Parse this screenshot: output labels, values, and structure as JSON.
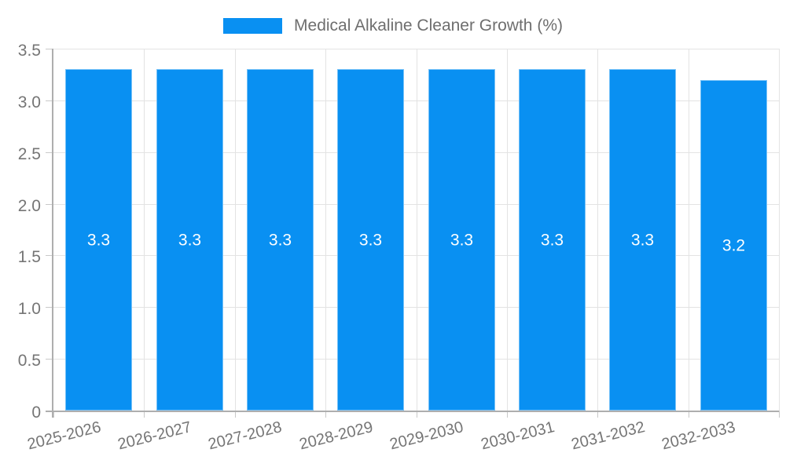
{
  "chart_data": {
    "type": "bar",
    "title": "Medical Alkaline Cleaner Growth (%)",
    "categories": [
      "2025-2026",
      "2026-2027",
      "2027-2028",
      "2028-2029",
      "2029-2030",
      "2030-2031",
      "2031-2032",
      "2032-2033"
    ],
    "values": [
      3.3,
      3.3,
      3.3,
      3.3,
      3.3,
      3.3,
      3.3,
      3.2
    ],
    "value_labels": [
      "3.3",
      "3.3",
      "3.3",
      "3.3",
      "3.3",
      "3.3",
      "3.3",
      "3.2"
    ],
    "xlabel": "",
    "ylabel": "",
    "ylim": [
      0,
      3.5
    ],
    "yticks": [
      0,
      0.5,
      1.0,
      1.5,
      2.0,
      2.5,
      3.0,
      3.5
    ],
    "ytick_labels": [
      "0",
      "0.5",
      "1.0",
      "1.5",
      "2.0",
      "2.5",
      "3.0",
      "3.5"
    ],
    "grid": true,
    "legend_position": "top-center",
    "colors": {
      "bar": "#0990F2",
      "bar_label": "#ffffff",
      "axis_text": "#757575",
      "legend_text": "#6e6e6e",
      "gridline": "#e3e3e3",
      "axis_line": "#aeaeae",
      "tick_stub": "#c9c9c9",
      "background": "#ffffff"
    }
  }
}
